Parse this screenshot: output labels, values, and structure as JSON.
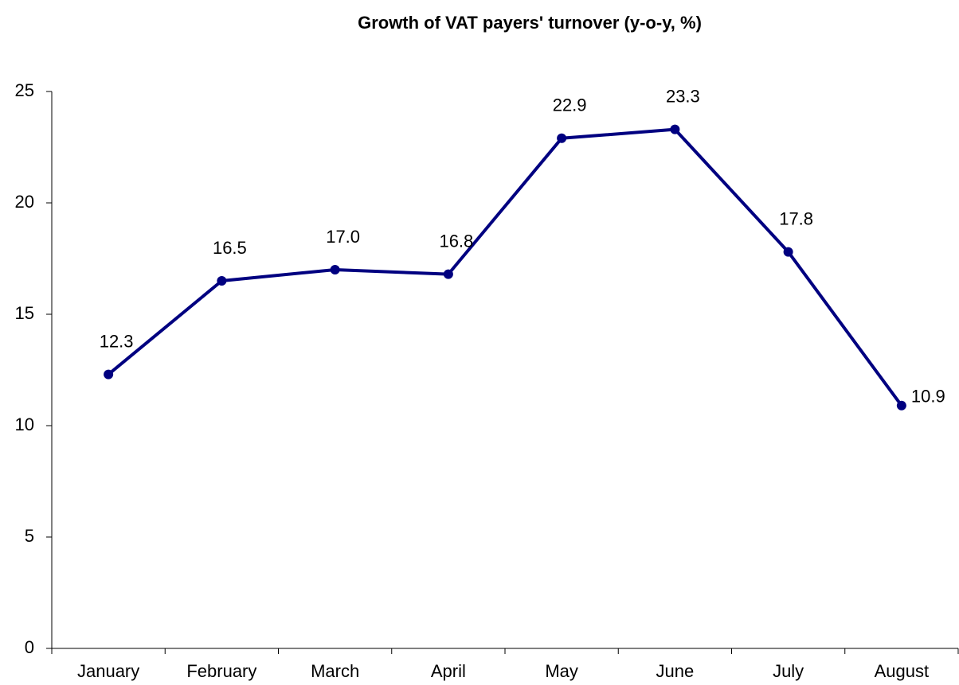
{
  "chart_data": {
    "type": "line",
    "title": "Growth of VAT payers' turnover (y-o-y, %)",
    "categories": [
      "January",
      "February",
      "March",
      "April",
      "May",
      "June",
      "July",
      "August"
    ],
    "series": [
      {
        "name": "Growth of VAT payers' turnover",
        "color": "#000080",
        "values": [
          12.3,
          16.5,
          17.0,
          16.8,
          22.9,
          23.3,
          17.8,
          10.9
        ],
        "value_labels": [
          "12.3",
          "16.5",
          "17.0",
          "16.8",
          "22.9",
          "23.3",
          "17.8",
          "10.9"
        ]
      }
    ],
    "ylim": [
      0,
      25
    ],
    "yticks": [
      0,
      5,
      10,
      15,
      20,
      25
    ],
    "grid": false
  }
}
